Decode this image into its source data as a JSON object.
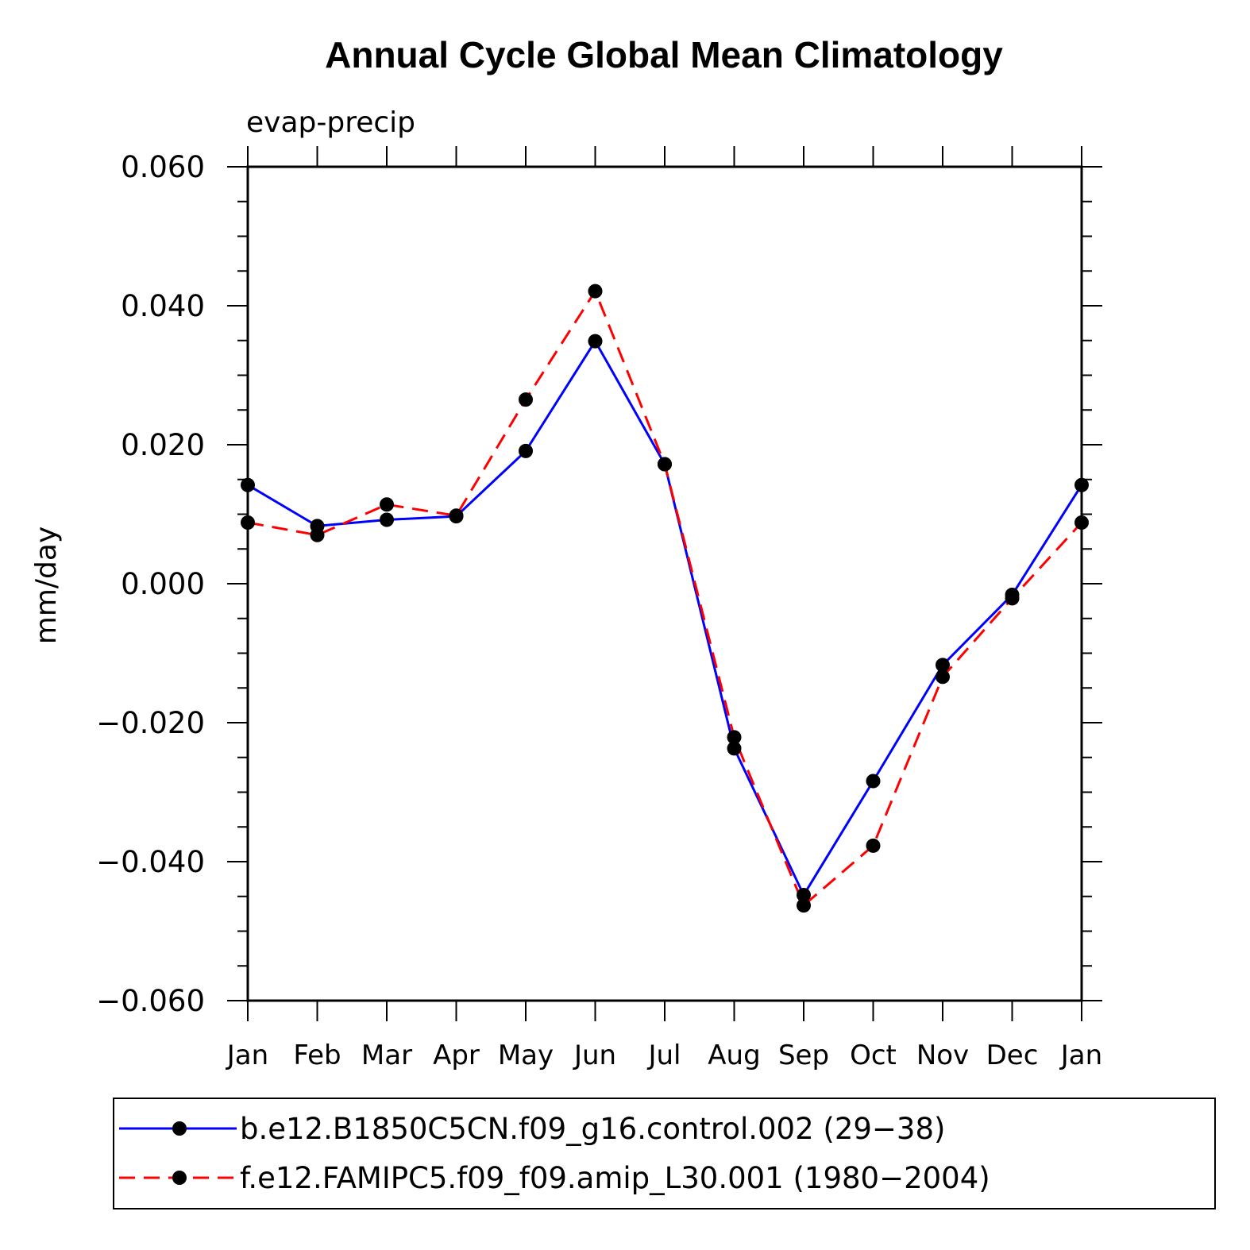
{
  "chart_data": {
    "type": "line",
    "title": "Annual Cycle Global Mean Climatology",
    "subtitle": "evap-precip",
    "xlabel": "",
    "ylabel": "mm/day",
    "ylim": [
      -0.06,
      0.06
    ],
    "yticks": [
      "0.060",
      "0.040",
      "0.020",
      "0.000",
      "−0.020",
      "−0.040",
      "−0.060"
    ],
    "ytick_values": [
      0.06,
      0.04,
      0.02,
      0.0,
      -0.02,
      -0.04,
      -0.06
    ],
    "categories": [
      "Jan",
      "Feb",
      "Mar",
      "Apr",
      "May",
      "Jun",
      "Jul",
      "Aug",
      "Sep",
      "Oct",
      "Nov",
      "Dec",
      "Jan"
    ],
    "grid": false,
    "legend_position": "bottom",
    "series": [
      {
        "name": "b.e12.B1850C5CN.f09_g16.control.002 (29−38)",
        "color": "#0000ff",
        "style": "solid",
        "values": [
          0.0142,
          0.0083,
          0.0092,
          0.0097,
          0.0191,
          0.0349,
          0.0172,
          -0.0237,
          -0.0448,
          -0.0284,
          -0.0117,
          -0.0016,
          0.0142
        ]
      },
      {
        "name": "f.e12.FAMIPC5.f09_f09.amip_L30.001 (1980−2004)",
        "color": "#ff0000",
        "style": "dashed",
        "values": [
          0.0088,
          0.007,
          0.0114,
          0.0098,
          0.0265,
          0.0421,
          0.0172,
          -0.0221,
          -0.0463,
          -0.0377,
          -0.0134,
          -0.0021,
          0.0088
        ]
      }
    ]
  }
}
